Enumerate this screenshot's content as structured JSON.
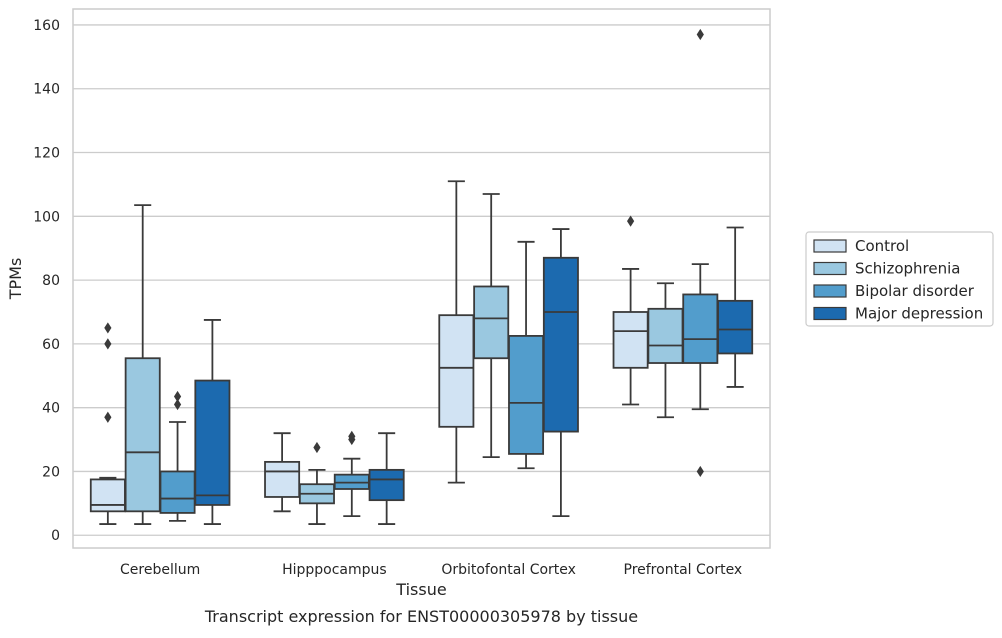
{
  "chart_data": {
    "type": "boxplot",
    "xlabel": "Tissue",
    "ylabel": "TPMs",
    "caption": "Transcript expression for ENST00000305978 by tissue",
    "ylim": [
      -4,
      165
    ],
    "yticks": [
      0,
      20,
      40,
      60,
      80,
      100,
      120,
      140,
      160
    ],
    "categories": [
      "Cerebellum",
      "Hipppocampus",
      "Orbitofontal Cortex",
      "Prefrontal Cortex"
    ],
    "grid": "horizontal",
    "legend_position": "right",
    "series": [
      {
        "name": "Control",
        "color": "#d1e3f3",
        "boxes": [
          {
            "whislo": 3.5,
            "q1": 7.5,
            "med": 9.5,
            "q3": 17.5,
            "whishi": 18,
            "fliers": [
              37,
              60,
              65
            ]
          },
          {
            "whislo": 7.5,
            "q1": 12,
            "med": 20,
            "q3": 23,
            "whishi": 32,
            "fliers": []
          },
          {
            "whislo": 16.5,
            "q1": 34,
            "med": 52.5,
            "q3": 69,
            "whishi": 111,
            "fliers": []
          },
          {
            "whislo": 41,
            "q1": 52.5,
            "med": 64,
            "q3": 70,
            "whishi": 83.5,
            "fliers": [
              98.5
            ]
          }
        ]
      },
      {
        "name": "Schizophrenia",
        "color": "#9ac8e0",
        "boxes": [
          {
            "whislo": 3.5,
            "q1": 7.5,
            "med": 26,
            "q3": 55.5,
            "whishi": 103.5,
            "fliers": []
          },
          {
            "whislo": 3.5,
            "q1": 10,
            "med": 13,
            "q3": 16,
            "whishi": 20.5,
            "fliers": [
              27.5
            ]
          },
          {
            "whislo": 24.5,
            "q1": 55.5,
            "med": 68,
            "q3": 78,
            "whishi": 107,
            "fliers": []
          },
          {
            "whislo": 37,
            "q1": 54,
            "med": 59.5,
            "q3": 71,
            "whishi": 79,
            "fliers": []
          }
        ]
      },
      {
        "name": "Bipolar disorder",
        "color": "#529dcc",
        "boxes": [
          {
            "whislo": 4.5,
            "q1": 7,
            "med": 11.5,
            "q3": 20,
            "whishi": 35.5,
            "fliers": [
              41,
              43.5
            ]
          },
          {
            "whislo": 6,
            "q1": 14.5,
            "med": 16.5,
            "q3": 19,
            "whishi": 24,
            "fliers": [
              30,
              31
            ]
          },
          {
            "whislo": 21,
            "q1": 25.5,
            "med": 41.5,
            "q3": 62.5,
            "whishi": 92,
            "fliers": []
          },
          {
            "whislo": 39.5,
            "q1": 54,
            "med": 61.5,
            "q3": 75.5,
            "whishi": 85,
            "fliers": [
              20,
              157
            ]
          }
        ]
      },
      {
        "name": "Major depression",
        "color": "#1c6aaf",
        "boxes": [
          {
            "whislo": 3.5,
            "q1": 9.5,
            "med": 12.5,
            "q3": 48.5,
            "whishi": 67.5,
            "fliers": []
          },
          {
            "whislo": 3.5,
            "q1": 11,
            "med": 17.5,
            "q3": 20.5,
            "whishi": 32,
            "fliers": []
          },
          {
            "whislo": 6,
            "q1": 32.5,
            "med": 70,
            "q3": 87,
            "whishi": 96,
            "fliers": []
          },
          {
            "whislo": 46.5,
            "q1": 57,
            "med": 64.5,
            "q3": 73.5,
            "whishi": 96.5,
            "fliers": []
          }
        ]
      }
    ]
  }
}
